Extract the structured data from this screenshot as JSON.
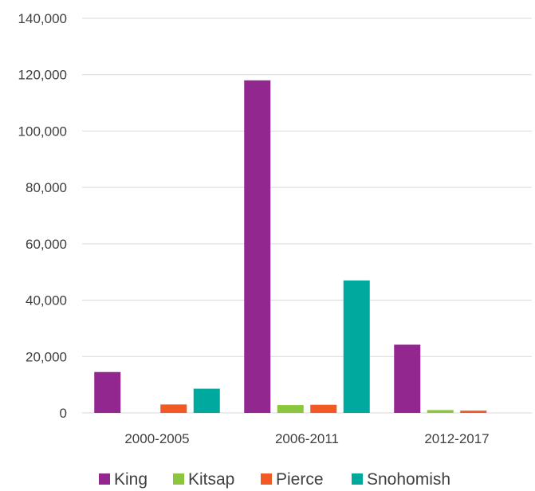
{
  "chart_data": {
    "type": "bar",
    "title": "",
    "xlabel": "",
    "ylabel": "",
    "categories": [
      "2000-2005",
      "2006-2011",
      "2012-2017"
    ],
    "ylim": [
      0,
      140000
    ],
    "yticks": [
      0,
      20000,
      40000,
      60000,
      80000,
      100000,
      120000,
      140000
    ],
    "ytick_labels": [
      "0",
      "20,000",
      "40,000",
      "60,000",
      "80,000",
      "100,000",
      "120,000",
      "140,000"
    ],
    "grid": true,
    "legend_position": "bottom",
    "series": [
      {
        "name": "King",
        "color": "#92278f",
        "values": [
          14500,
          118000,
          24200
        ]
      },
      {
        "name": "Kitsap",
        "color": "#8cc63f",
        "values": [
          0,
          2800,
          1000
        ]
      },
      {
        "name": "Pierce",
        "color": "#f15a24",
        "values": [
          3000,
          2900,
          800
        ]
      },
      {
        "name": "Snohomish",
        "color": "#00a99d",
        "values": [
          8600,
          47000,
          0
        ]
      }
    ]
  }
}
